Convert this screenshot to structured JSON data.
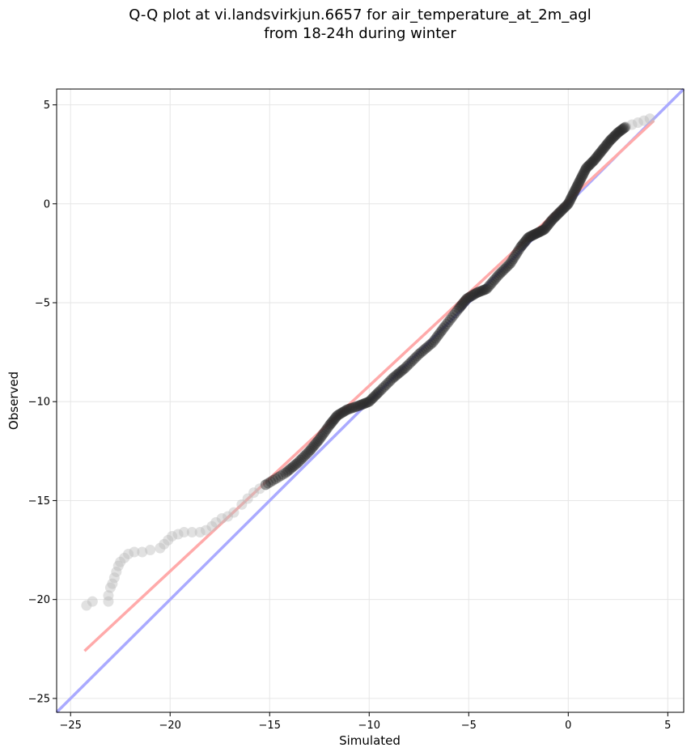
{
  "chart_data": {
    "type": "scatter",
    "title": "Q-Q plot at vi.landsvirkjun.6657 for air_temperature_at_2m_agl",
    "subtitle": "from 18-24h during winter",
    "xlabel": "Simulated",
    "ylabel": "Observed",
    "xlim": [
      -25.7,
      5.8
    ],
    "ylim": [
      -25.7,
      5.8
    ],
    "xticks": [
      -25,
      -20,
      -15,
      -10,
      -5,
      0,
      5
    ],
    "yticks": [
      -25,
      -20,
      -15,
      -10,
      -5,
      0,
      5
    ],
    "xtick_labels": [
      "−25",
      "−20",
      "−15",
      "−10",
      "−5",
      "0",
      "5"
    ],
    "ytick_labels": [
      "−25",
      "−20",
      "−15",
      "−10",
      "−5",
      "0",
      "5"
    ],
    "grid": true,
    "points_light": [
      [
        -24.2,
        -20.3
      ],
      [
        -23.9,
        -20.1
      ],
      [
        -23.1,
        -20.1
      ],
      [
        -23.1,
        -19.8
      ],
      [
        -23.0,
        -19.4
      ],
      [
        -22.9,
        -19.2
      ],
      [
        -22.8,
        -18.9
      ],
      [
        -22.7,
        -18.6
      ],
      [
        -22.6,
        -18.3
      ],
      [
        -22.5,
        -18.1
      ],
      [
        -22.3,
        -17.9
      ],
      [
        -22.1,
        -17.7
      ],
      [
        -21.8,
        -17.6
      ],
      [
        -21.4,
        -17.6
      ],
      [
        -21.0,
        -17.5
      ],
      [
        -20.5,
        -17.4
      ],
      [
        -20.3,
        -17.2
      ],
      [
        -20.1,
        -17.0
      ],
      [
        -19.9,
        -16.8
      ],
      [
        -19.6,
        -16.7
      ],
      [
        -19.3,
        -16.6
      ],
      [
        -18.9,
        -16.6
      ],
      [
        -18.5,
        -16.6
      ],
      [
        -18.2,
        -16.5
      ],
      [
        -17.9,
        -16.3
      ],
      [
        -17.7,
        -16.1
      ],
      [
        -17.4,
        -15.9
      ],
      [
        -17.1,
        -15.8
      ],
      [
        -16.8,
        -15.6
      ],
      [
        -16.4,
        -15.2
      ],
      [
        -16.1,
        -14.9
      ],
      [
        -15.8,
        -14.6
      ],
      [
        -15.5,
        -14.4
      ],
      [
        -15.2,
        -14.2
      ],
      [
        2.9,
        3.9
      ],
      [
        3.2,
        4.0
      ],
      [
        3.5,
        4.1
      ],
      [
        3.8,
        4.2
      ],
      [
        4.1,
        4.3
      ]
    ],
    "points_dark_path": [
      [
        -15.2,
        -14.2
      ],
      [
        -14.2,
        -13.6
      ],
      [
        -13.6,
        -13.1
      ],
      [
        -13.0,
        -12.5
      ],
      [
        -12.5,
        -11.9
      ],
      [
        -12.0,
        -11.2
      ],
      [
        -11.6,
        -10.7
      ],
      [
        -11.1,
        -10.4
      ],
      [
        -10.5,
        -10.2
      ],
      [
        -10.0,
        -10.0
      ],
      [
        -9.5,
        -9.5
      ],
      [
        -8.8,
        -8.8
      ],
      [
        -8.2,
        -8.3
      ],
      [
        -7.5,
        -7.6
      ],
      [
        -6.8,
        -7.0
      ],
      [
        -6.2,
        -6.2
      ],
      [
        -5.5,
        -5.3
      ],
      [
        -5.1,
        -4.8
      ],
      [
        -4.6,
        -4.5
      ],
      [
        -4.1,
        -4.3
      ],
      [
        -3.5,
        -3.6
      ],
      [
        -2.9,
        -3.0
      ],
      [
        -2.4,
        -2.2
      ],
      [
        -2.0,
        -1.7
      ],
      [
        -1.6,
        -1.5
      ],
      [
        -1.2,
        -1.3
      ],
      [
        -0.8,
        -0.8
      ],
      [
        -0.4,
        -0.4
      ],
      [
        0.0,
        0.0
      ],
      [
        0.3,
        0.6
      ],
      [
        0.6,
        1.2
      ],
      [
        0.9,
        1.8
      ],
      [
        1.3,
        2.2
      ],
      [
        1.7,
        2.7
      ],
      [
        2.1,
        3.2
      ],
      [
        2.5,
        3.6
      ],
      [
        2.9,
        3.9
      ]
    ],
    "reference_line": {
      "name": "1:1",
      "color": "#aaaaff",
      "x": [
        -25.7,
        5.8
      ],
      "y": [
        -25.7,
        5.8
      ]
    },
    "fit_line": {
      "color": "#ffaaaa",
      "x": [
        -24.3,
        4.3
      ],
      "y": [
        -22.6,
        4.2
      ]
    }
  }
}
